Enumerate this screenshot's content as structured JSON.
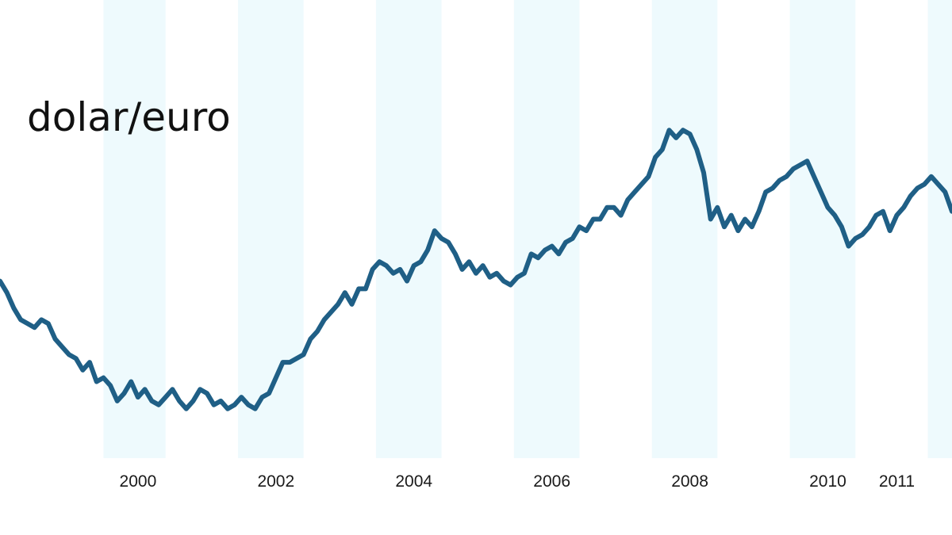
{
  "chart_data": {
    "type": "line",
    "title": "dolar/euro",
    "xlabel": "",
    "ylabel": "",
    "x_ticks": [
      "2000",
      "2002",
      "2004",
      "2006",
      "2008",
      "2010",
      "2011"
    ],
    "xlim": [
      1998.0,
      2011.8
    ],
    "ylim": [
      0.8,
      1.65
    ],
    "grid": false,
    "legend": "none",
    "shaded_periods": [
      [
        1999.5,
        2000.4
      ],
      [
        2001.45,
        2002.4
      ],
      [
        2003.45,
        2004.4
      ],
      [
        2005.45,
        2006.4
      ],
      [
        2007.45,
        2008.4
      ],
      [
        2009.45,
        2010.4
      ],
      [
        2011.45,
        2011.8
      ]
    ],
    "series": [
      {
        "color": "#1f5f86",
        "x": [
          1998.0,
          1998.1,
          1998.2,
          1998.3,
          1998.4,
          1998.5,
          1998.6,
          1998.7,
          1998.8,
          1998.9,
          1999.0,
          1999.1,
          1999.2,
          1999.3,
          1999.4,
          1999.5,
          1999.6,
          1999.7,
          1999.8,
          1999.9,
          2000.0,
          2000.1,
          2000.2,
          2000.3,
          2000.4,
          2000.5,
          2000.6,
          2000.7,
          2000.8,
          2000.9,
          2001.0,
          2001.1,
          2001.2,
          2001.3,
          2001.4,
          2001.5,
          2001.6,
          2001.7,
          2001.8,
          2001.9,
          2002.0,
          2002.1,
          2002.2,
          2002.3,
          2002.4,
          2002.5,
          2002.6,
          2002.7,
          2002.8,
          2002.9,
          2003.0,
          2003.1,
          2003.2,
          2003.3,
          2003.4,
          2003.5,
          2003.6,
          2003.7,
          2003.8,
          2003.9,
          2004.0,
          2004.1,
          2004.2,
          2004.3,
          2004.4,
          2004.5,
          2004.6,
          2004.7,
          2004.8,
          2004.9,
          2005.0,
          2005.1,
          2005.2,
          2005.3,
          2005.4,
          2005.5,
          2005.6,
          2005.7,
          2005.8,
          2005.9,
          2006.0,
          2006.1,
          2006.2,
          2006.3,
          2006.4,
          2006.5,
          2006.6,
          2006.7,
          2006.8,
          2006.9,
          2007.0,
          2007.1,
          2007.2,
          2007.3,
          2007.4,
          2007.5,
          2007.6,
          2007.7,
          2007.8,
          2007.9,
          2008.0,
          2008.1,
          2008.2,
          2008.3,
          2008.4,
          2008.5,
          2008.6,
          2008.7,
          2008.8,
          2008.9,
          2009.0,
          2009.1,
          2009.2,
          2009.3,
          2009.4,
          2009.5,
          2009.6,
          2009.7,
          2009.8,
          2009.9,
          2010.0,
          2010.1,
          2010.2,
          2010.3,
          2010.4,
          2010.5,
          2010.6,
          2010.7,
          2010.8,
          2010.9,
          2011.0,
          2011.1,
          2011.2,
          2011.3,
          2011.4,
          2011.5,
          2011.6,
          2011.7,
          2011.8
        ],
        "values": [
          1.19,
          1.16,
          1.12,
          1.09,
          1.08,
          1.07,
          1.09,
          1.08,
          1.04,
          1.02,
          1.0,
          0.99,
          0.96,
          0.98,
          0.93,
          0.94,
          0.92,
          0.88,
          0.9,
          0.93,
          0.89,
          0.91,
          0.88,
          0.87,
          0.89,
          0.91,
          0.88,
          0.86,
          0.88,
          0.91,
          0.9,
          0.87,
          0.88,
          0.86,
          0.87,
          0.89,
          0.87,
          0.86,
          0.89,
          0.9,
          0.94,
          0.98,
          0.98,
          0.99,
          1.0,
          1.04,
          1.06,
          1.09,
          1.11,
          1.13,
          1.16,
          1.13,
          1.17,
          1.17,
          1.22,
          1.24,
          1.23,
          1.21,
          1.22,
          1.19,
          1.23,
          1.24,
          1.27,
          1.32,
          1.3,
          1.29,
          1.26,
          1.22,
          1.24,
          1.21,
          1.23,
          1.2,
          1.21,
          1.19,
          1.18,
          1.2,
          1.21,
          1.26,
          1.25,
          1.27,
          1.28,
          1.26,
          1.29,
          1.3,
          1.33,
          1.32,
          1.35,
          1.35,
          1.38,
          1.38,
          1.36,
          1.4,
          1.42,
          1.44,
          1.46,
          1.51,
          1.53,
          1.58,
          1.56,
          1.58,
          1.57,
          1.53,
          1.47,
          1.35,
          1.38,
          1.33,
          1.36,
          1.32,
          1.35,
          1.33,
          1.37,
          1.42,
          1.43,
          1.45,
          1.46,
          1.48,
          1.49,
          1.5,
          1.46,
          1.42,
          1.38,
          1.36,
          1.33,
          1.28,
          1.3,
          1.31,
          1.33,
          1.36,
          1.37,
          1.32,
          1.36,
          1.38,
          1.41,
          1.43,
          1.44,
          1.46,
          1.44,
          1.42,
          1.37
        ]
      }
    ]
  }
}
